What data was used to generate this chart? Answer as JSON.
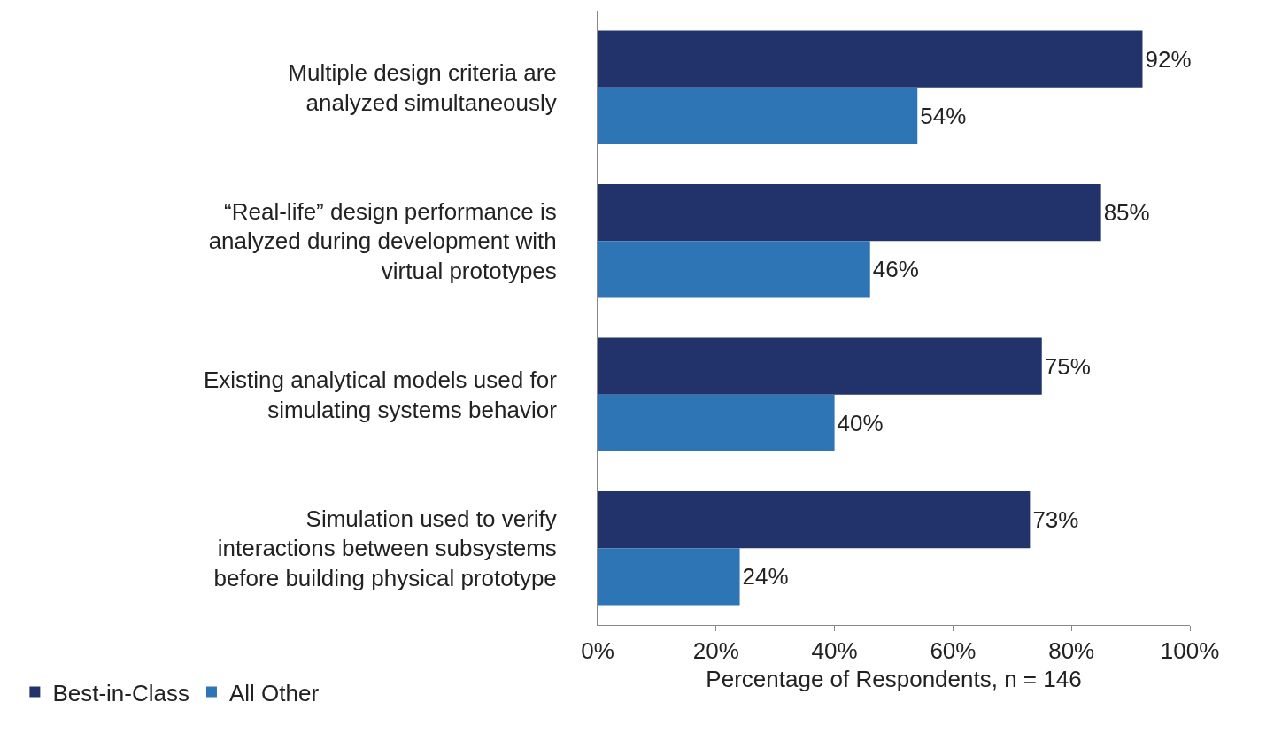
{
  "chart_data": {
    "type": "bar",
    "orientation": "horizontal",
    "xlabel": "Percentage of Respondents, n = 146",
    "categories": [
      "Multiple design criteria are analyzed simultaneously",
      "“Real-life” design performance is analyzed during development with virtual prototypes",
      "Existing analytical models used for simulating systems behavior",
      "Simulation used to verify interactions between subsystems before building physical prototype"
    ],
    "series": [
      {
        "name": "Best-in-Class",
        "color": "#22336b",
        "values": [
          92,
          85,
          75,
          73
        ],
        "value_labels": [
          "92%",
          "85%",
          "75%",
          "73%"
        ]
      },
      {
        "name": "All Other",
        "color": "#2e75b6",
        "values": [
          54,
          46,
          40,
          24
        ],
        "value_labels": [
          "54%",
          "46%",
          "40%",
          "24%"
        ]
      }
    ],
    "xlim": [
      0,
      100
    ],
    "xticks": [
      {
        "value": 0,
        "label": "0%"
      },
      {
        "value": 20,
        "label": "20%"
      },
      {
        "value": 40,
        "label": "40%"
      },
      {
        "value": 60,
        "label": "60%"
      },
      {
        "value": 80,
        "label": "80%"
      },
      {
        "value": 100,
        "label": "100%"
      }
    ],
    "legend": "bottom left"
  }
}
